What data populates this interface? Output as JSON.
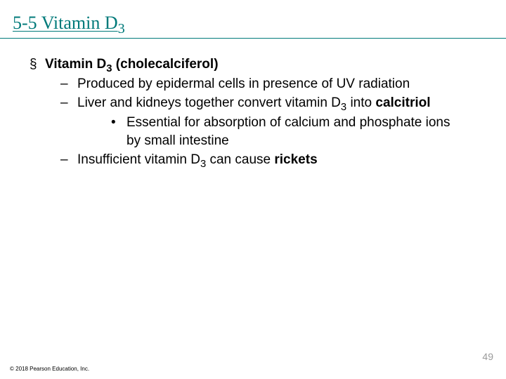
{
  "title_prefix": "5-5 Vitamin D",
  "title_sub": "3",
  "heading_prefix": "Vitamin D",
  "heading_suffix": " (cholecalciferol)",
  "sub_d": "3",
  "b1": "Produced by epidermal cells in presence of UV radiation",
  "b2_a": "Liver and kidneys together convert vitamin D",
  "b2_b": " into ",
  "b2_bold": "calcitriol",
  "b2sub1": "Essential for absorption of calcium and phosphate ions by small intestine",
  "b3_a": "Insufficient vitamin D",
  "b3_b": " can cause ",
  "b3_bold": "rickets",
  "copyright": "© 2018 Pearson Education, Inc.",
  "page": "49",
  "colors": {
    "title": "#007a7a",
    "text": "#000000",
    "page_num": "#9a9a9a",
    "background": "#ffffff"
  }
}
